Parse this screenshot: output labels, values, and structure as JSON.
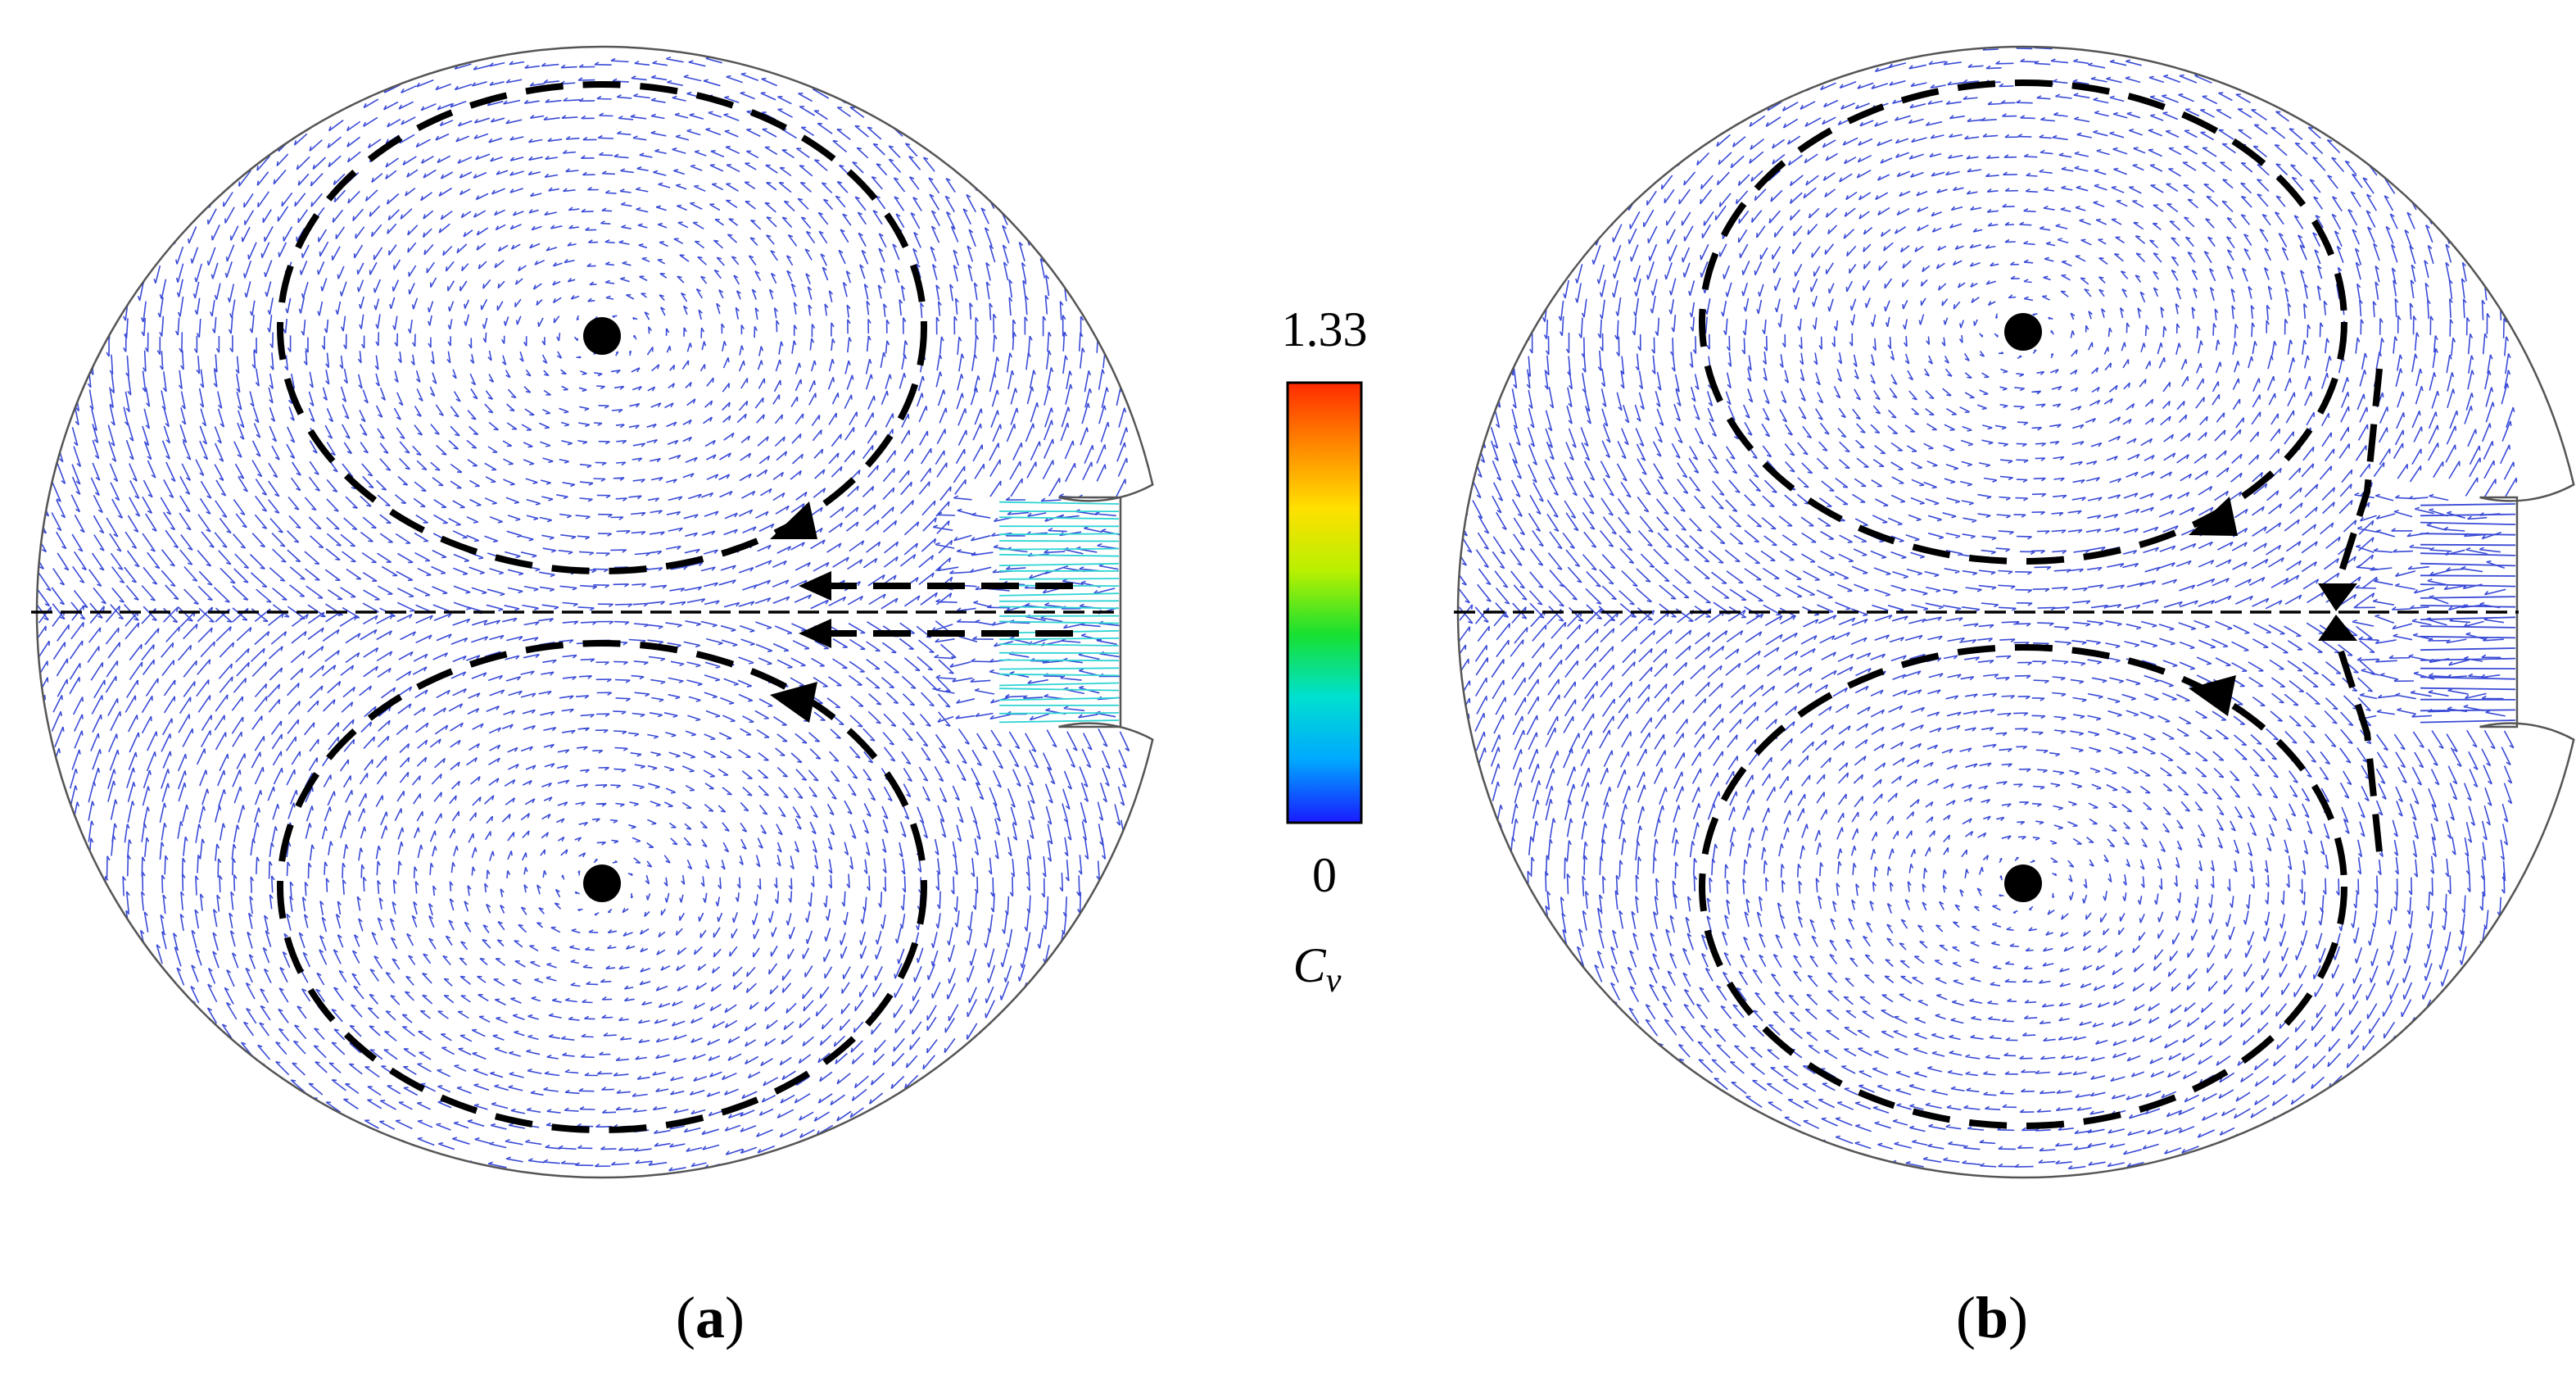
{
  "panels": [
    {
      "id": "a",
      "label_open": "(",
      "label_letter": "a",
      "label_close": ")",
      "inlet_color": "#2fd4d4"
    },
    {
      "id": "b",
      "label_open": "(",
      "label_letter": "b",
      "label_close": ")",
      "inlet_color": "#3a4bd6"
    }
  ],
  "colorbar": {
    "max_label": "1.33",
    "min_label": "0",
    "variable": "C",
    "variable_sub": "v",
    "max": 1.33,
    "min": 0,
    "colors": [
      "#1a1aff",
      "#00a8ff",
      "#00e0d0",
      "#18e030",
      "#b8f000",
      "#ffe000",
      "#ff8800",
      "#ff2a00"
    ]
  },
  "colors": {
    "vector": "#3a4bd6",
    "outline": "#555555",
    "dash": "#000000"
  }
}
